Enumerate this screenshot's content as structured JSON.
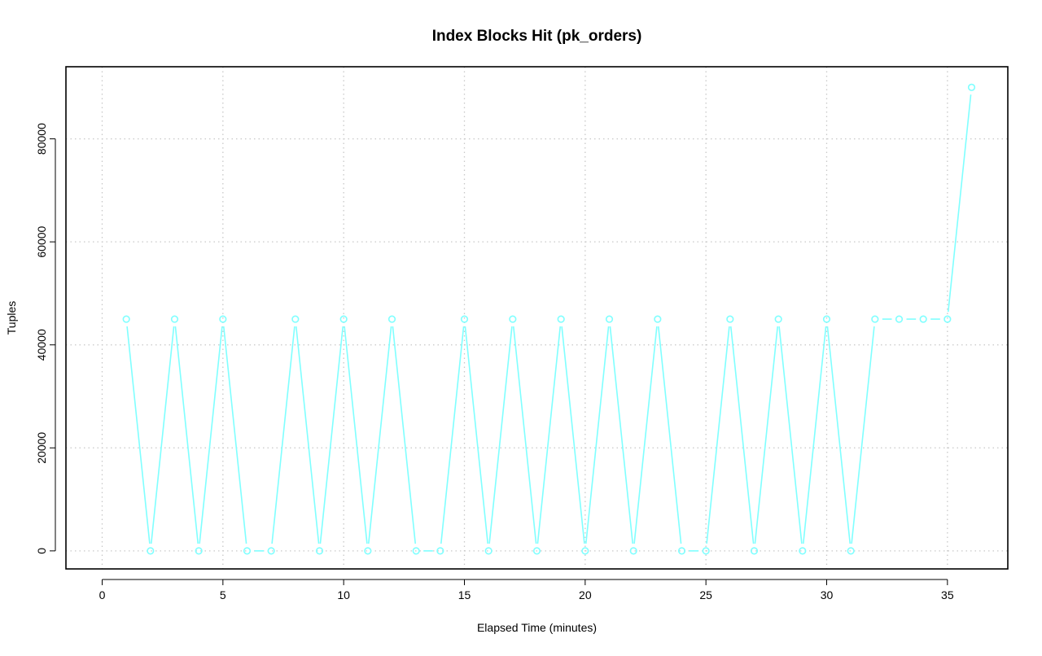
{
  "chart_data": {
    "type": "line",
    "title": "Index Blocks Hit (pk_orders)",
    "xlabel": "Elapsed Time (minutes)",
    "ylabel": "Tuples",
    "xlim": [
      -1.5,
      37.5
    ],
    "ylim": [
      -3500,
      94000
    ],
    "xticks": [
      0,
      5,
      10,
      15,
      20,
      25,
      30,
      35
    ],
    "yticks": [
      0,
      20000,
      40000,
      60000,
      80000
    ],
    "grid": true,
    "line_color": "#80ffff",
    "series": [
      {
        "x": [
          1,
          2,
          3,
          4,
          5,
          6,
          7,
          8,
          9,
          10,
          11,
          12,
          13,
          14,
          15,
          16,
          17,
          18,
          19,
          20,
          21,
          22,
          23,
          24,
          25,
          26,
          27,
          28,
          29,
          30,
          31,
          32,
          33,
          34,
          35,
          36
        ],
        "y": [
          45000,
          0,
          45000,
          0,
          45000,
          0,
          0,
          45000,
          0,
          45000,
          0,
          45000,
          0,
          0,
          45000,
          0,
          45000,
          0,
          45000,
          0,
          45000,
          0,
          45000,
          0,
          0,
          45000,
          0,
          45000,
          0,
          45000,
          0,
          45000,
          45000,
          45000,
          45000,
          90000
        ]
      }
    ]
  }
}
